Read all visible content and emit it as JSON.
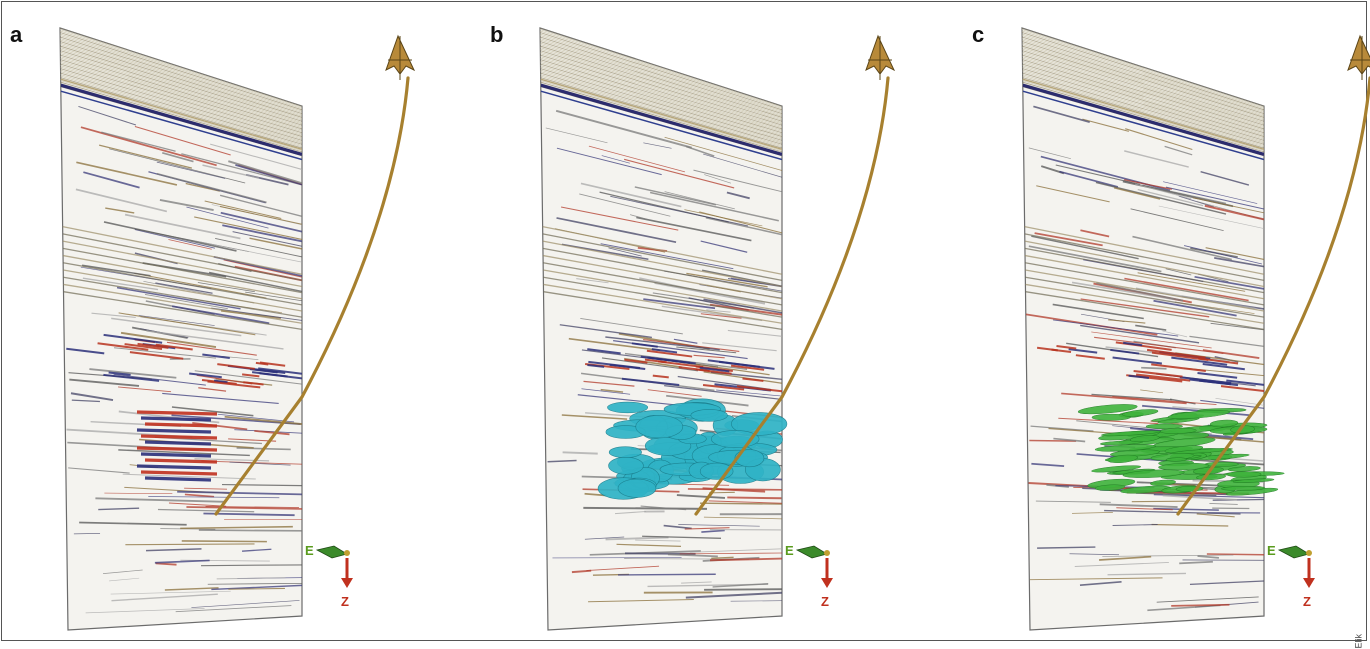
{
  "panels": [
    {
      "letter": "a",
      "body": "none",
      "east_label": "E",
      "z_label": "Z"
    },
    {
      "letter": "b",
      "body": "cyan",
      "east_label": "E",
      "z_label": "Z"
    },
    {
      "letter": "c",
      "body": "green",
      "east_label": "E",
      "z_label": "Z"
    }
  ],
  "credit": "Elik",
  "colors": {
    "well_path": "#a7802f",
    "body_cyan": "#2fb3c6",
    "body_green": "#3fb33c",
    "axis_down": "#c0311f",
    "east_label": "#5a9b1e"
  }
}
